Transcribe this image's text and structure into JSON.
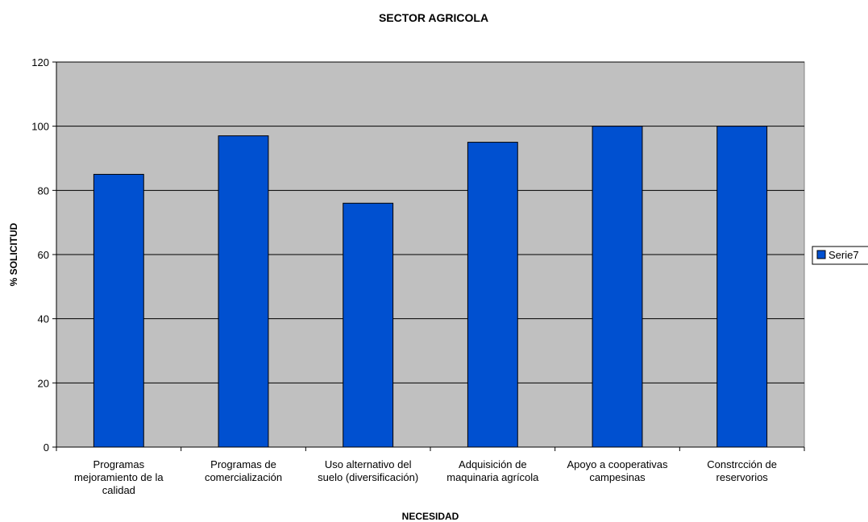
{
  "chart_data": {
    "type": "bar",
    "title": "SECTOR AGRICOLA",
    "xlabel": "NECESIDAD",
    "ylabel": "% SOLICITUD",
    "ylim": [
      0,
      120
    ],
    "yticks": [
      0,
      20,
      40,
      60,
      80,
      100,
      120
    ],
    "grid": true,
    "legend_position": "right",
    "categories": [
      [
        "Programas",
        "mejoramiento de la",
        "calidad"
      ],
      [
        "Programas de",
        "comercialización"
      ],
      [
        "Uso alternativo del",
        "suelo (diversificación)"
      ],
      [
        "Adquisición de",
        "maquinaria agrícola"
      ],
      [
        "Apoyo a cooperativas",
        "campesinas"
      ],
      [
        "Constrcción de",
        "reservorios"
      ]
    ],
    "series": [
      {
        "name": "Serie7",
        "values": [
          85,
          97,
          76,
          95,
          100,
          100
        ],
        "color": "#0050D0"
      }
    ],
    "plot_background": "#C0C0C0"
  }
}
